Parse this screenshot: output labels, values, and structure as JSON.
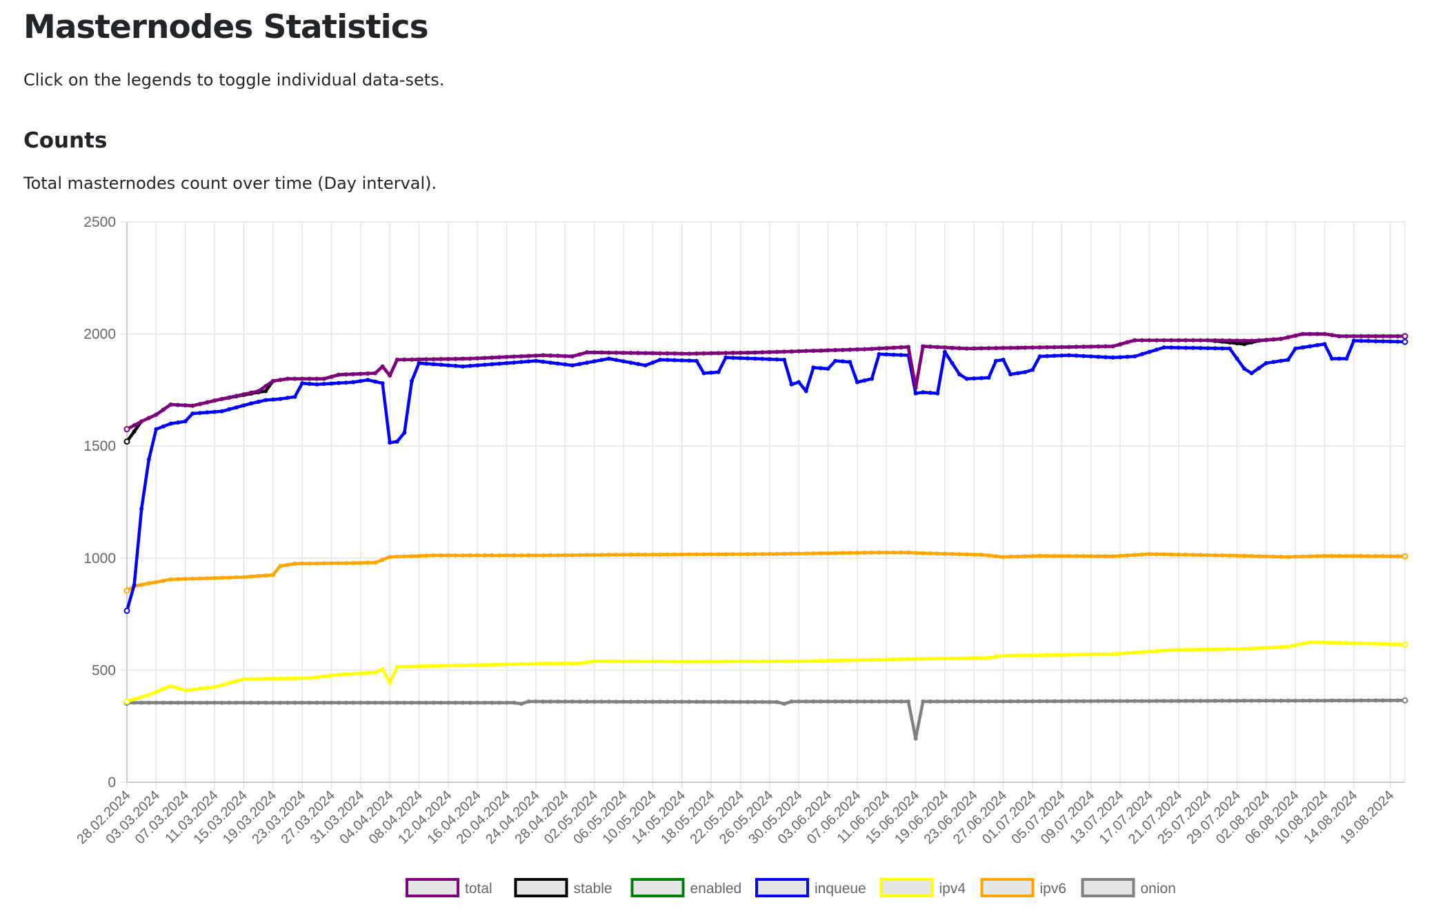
{
  "page": {
    "title": "Masternodes Statistics",
    "intro": "Click on the legends to toggle individual data-sets.",
    "section_title": "Counts",
    "section_description": "Total masternodes count over time (Day interval)."
  },
  "chart_data": {
    "type": "line",
    "title": "",
    "xlabel": "",
    "ylabel": "",
    "ylim": [
      0,
      2500
    ],
    "yticks": [
      0,
      500,
      1000,
      1500,
      2000,
      2500
    ],
    "grid": true,
    "legend_position": "bottom",
    "start_date": "2024-02-28",
    "end_date": "2024-08-21",
    "x_tick_labels": [
      "28.02.2024",
      "03.03.2024",
      "07.03.2024",
      "11.03.2024",
      "15.03.2024",
      "19.03.2024",
      "23.03.2024",
      "27.03.2024",
      "31.03.2024",
      "04.04.2024",
      "08.04.2024",
      "12.04.2024",
      "16.04.2024",
      "20.04.2024",
      "24.04.2024",
      "28.04.2024",
      "02.05.2024",
      "06.05.2024",
      "10.05.2024",
      "14.05.2024",
      "18.05.2024",
      "22.05.2024",
      "26.05.2024",
      "30.05.2024",
      "03.06.2024",
      "07.06.2024",
      "11.06.2024",
      "15.06.2024",
      "19.06.2024",
      "23.06.2024",
      "27.06.2024",
      "01.07.2024",
      "05.07.2024",
      "09.07.2024",
      "13.07.2024",
      "17.07.2024",
      "21.07.2024",
      "25.07.2024",
      "29.07.2024",
      "02.08.2024",
      "06.08.2024",
      "10.08.2024",
      "14.08.2024",
      "19.08.2024"
    ],
    "series": [
      {
        "name": "total",
        "color": "#800080",
        "keypoints": [
          [
            "2024-02-28",
            1575
          ],
          [
            "2024-03-01",
            1610
          ],
          [
            "2024-03-03",
            1640
          ],
          [
            "2024-03-05",
            1685
          ],
          [
            "2024-03-08",
            1680
          ],
          [
            "2024-03-12",
            1710
          ],
          [
            "2024-03-17",
            1745
          ],
          [
            "2024-03-19",
            1790
          ],
          [
            "2024-03-21",
            1800
          ],
          [
            "2024-03-26",
            1800
          ],
          [
            "2024-03-28",
            1818
          ],
          [
            "2024-04-02",
            1825
          ],
          [
            "2024-04-03",
            1855
          ],
          [
            "2024-04-04",
            1815
          ],
          [
            "2024-04-05",
            1885
          ],
          [
            "2024-04-15",
            1890
          ],
          [
            "2024-04-25",
            1905
          ],
          [
            "2024-04-29",
            1900
          ],
          [
            "2024-05-01",
            1918
          ],
          [
            "2024-05-15",
            1912
          ],
          [
            "2024-05-25",
            1918
          ],
          [
            "2024-06-08",
            1932
          ],
          [
            "2024-06-14",
            1942
          ],
          [
            "2024-06-15",
            1760
          ],
          [
            "2024-06-16",
            1945
          ],
          [
            "2024-06-22",
            1935
          ],
          [
            "2024-07-02",
            1940
          ],
          [
            "2024-07-12",
            1945
          ],
          [
            "2024-07-15",
            1972
          ],
          [
            "2024-07-25",
            1972
          ],
          [
            "2024-07-31",
            1970
          ],
          [
            "2024-08-04",
            1978
          ],
          [
            "2024-08-07",
            2000
          ],
          [
            "2024-08-10",
            2000
          ],
          [
            "2024-08-12",
            1990
          ],
          [
            "2024-08-21",
            1990
          ]
        ]
      },
      {
        "name": "stable",
        "color": "#000000",
        "keypoints": [
          [
            "2024-02-28",
            1520
          ],
          [
            "2024-03-01",
            1610
          ],
          [
            "2024-03-03",
            1640
          ],
          [
            "2024-03-05",
            1685
          ],
          [
            "2024-03-08",
            1680
          ],
          [
            "2024-03-12",
            1710
          ],
          [
            "2024-03-17",
            1740
          ],
          [
            "2024-03-18",
            1745
          ],
          [
            "2024-03-19",
            1790
          ],
          [
            "2024-03-21",
            1800
          ],
          [
            "2024-03-26",
            1800
          ],
          [
            "2024-03-28",
            1818
          ],
          [
            "2024-04-02",
            1825
          ],
          [
            "2024-04-03",
            1855
          ],
          [
            "2024-04-04",
            1815
          ],
          [
            "2024-04-05",
            1885
          ],
          [
            "2024-04-15",
            1890
          ],
          [
            "2024-04-25",
            1905
          ],
          [
            "2024-04-29",
            1900
          ],
          [
            "2024-05-01",
            1918
          ],
          [
            "2024-05-15",
            1912
          ],
          [
            "2024-05-25",
            1918
          ],
          [
            "2024-06-08",
            1932
          ],
          [
            "2024-06-14",
            1942
          ],
          [
            "2024-06-15",
            1760
          ],
          [
            "2024-06-16",
            1945
          ],
          [
            "2024-06-22",
            1935
          ],
          [
            "2024-07-02",
            1940
          ],
          [
            "2024-07-12",
            1945
          ],
          [
            "2024-07-15",
            1972
          ],
          [
            "2024-07-25",
            1972
          ],
          [
            "2024-07-30",
            1955
          ],
          [
            "2024-08-01",
            1970
          ],
          [
            "2024-08-04",
            1978
          ],
          [
            "2024-08-07",
            2000
          ],
          [
            "2024-08-10",
            2000
          ],
          [
            "2024-08-12",
            1990
          ],
          [
            "2024-08-21",
            1990
          ]
        ]
      },
      {
        "name": "enabled",
        "color": "#008000",
        "keypoints": []
      },
      {
        "name": "inqueue",
        "color": "#0000ff",
        "keypoints": [
          [
            "2024-02-28",
            765
          ],
          [
            "2024-02-29",
            880
          ],
          [
            "2024-03-01",
            1220
          ],
          [
            "2024-03-02",
            1440
          ],
          [
            "2024-03-03",
            1575
          ],
          [
            "2024-03-05",
            1600
          ],
          [
            "2024-03-07",
            1610
          ],
          [
            "2024-03-08",
            1645
          ],
          [
            "2024-03-12",
            1655
          ],
          [
            "2024-03-16",
            1690
          ],
          [
            "2024-03-18",
            1705
          ],
          [
            "2024-03-20",
            1710
          ],
          [
            "2024-03-22",
            1720
          ],
          [
            "2024-03-23",
            1780
          ],
          [
            "2024-03-25",
            1775
          ],
          [
            "2024-03-30",
            1785
          ],
          [
            "2024-04-01",
            1795
          ],
          [
            "2024-04-03",
            1780
          ],
          [
            "2024-04-04",
            1515
          ],
          [
            "2024-04-05",
            1520
          ],
          [
            "2024-04-06",
            1560
          ],
          [
            "2024-04-07",
            1790
          ],
          [
            "2024-04-08",
            1870
          ],
          [
            "2024-04-14",
            1855
          ],
          [
            "2024-04-24",
            1880
          ],
          [
            "2024-04-29",
            1860
          ],
          [
            "2024-05-04",
            1890
          ],
          [
            "2024-05-09",
            1860
          ],
          [
            "2024-05-11",
            1885
          ],
          [
            "2024-05-16",
            1880
          ],
          [
            "2024-05-17",
            1825
          ],
          [
            "2024-05-19",
            1830
          ],
          [
            "2024-05-20",
            1895
          ],
          [
            "2024-05-28",
            1885
          ],
          [
            "2024-05-29",
            1775
          ],
          [
            "2024-05-30",
            1785
          ],
          [
            "2024-05-31",
            1745
          ],
          [
            "2024-06-01",
            1850
          ],
          [
            "2024-06-03",
            1845
          ],
          [
            "2024-06-04",
            1880
          ],
          [
            "2024-06-06",
            1875
          ],
          [
            "2024-06-07",
            1785
          ],
          [
            "2024-06-09",
            1800
          ],
          [
            "2024-06-10",
            1910
          ],
          [
            "2024-06-14",
            1905
          ],
          [
            "2024-06-15",
            1735
          ],
          [
            "2024-06-16",
            1740
          ],
          [
            "2024-06-18",
            1735
          ],
          [
            "2024-06-19",
            1920
          ],
          [
            "2024-06-21",
            1820
          ],
          [
            "2024-06-22",
            1800
          ],
          [
            "2024-06-25",
            1805
          ],
          [
            "2024-06-26",
            1880
          ],
          [
            "2024-06-27",
            1885
          ],
          [
            "2024-06-28",
            1820
          ],
          [
            "2024-06-30",
            1830
          ],
          [
            "2024-07-01",
            1840
          ],
          [
            "2024-07-02",
            1900
          ],
          [
            "2024-07-06",
            1905
          ],
          [
            "2024-07-12",
            1895
          ],
          [
            "2024-07-15",
            1900
          ],
          [
            "2024-07-17",
            1920
          ],
          [
            "2024-07-19",
            1940
          ],
          [
            "2024-07-28",
            1935
          ],
          [
            "2024-07-30",
            1845
          ],
          [
            "2024-07-31",
            1825
          ],
          [
            "2024-08-02",
            1870
          ],
          [
            "2024-08-05",
            1885
          ],
          [
            "2024-08-06",
            1935
          ],
          [
            "2024-08-10",
            1955
          ],
          [
            "2024-08-11",
            1890
          ],
          [
            "2024-08-13",
            1890
          ],
          [
            "2024-08-14",
            1970
          ],
          [
            "2024-08-21",
            1965
          ]
        ]
      },
      {
        "name": "ipv4",
        "color": "#ffff00",
        "keypoints": [
          [
            "2024-02-28",
            360
          ],
          [
            "2024-03-02",
            390
          ],
          [
            "2024-03-05",
            430
          ],
          [
            "2024-03-07",
            410
          ],
          [
            "2024-03-11",
            425
          ],
          [
            "2024-03-15",
            460
          ],
          [
            "2024-03-19",
            462
          ],
          [
            "2024-03-24",
            465
          ],
          [
            "2024-03-28",
            480
          ],
          [
            "2024-04-02",
            490
          ],
          [
            "2024-04-03",
            505
          ],
          [
            "2024-04-04",
            445
          ],
          [
            "2024-04-05",
            515
          ],
          [
            "2024-04-15",
            522
          ],
          [
            "2024-04-25",
            530
          ],
          [
            "2024-04-30",
            530
          ],
          [
            "2024-05-02",
            540
          ],
          [
            "2024-05-15",
            538
          ],
          [
            "2024-05-30",
            540
          ],
          [
            "2024-06-15",
            550
          ],
          [
            "2024-06-25",
            555
          ],
          [
            "2024-06-27",
            565
          ],
          [
            "2024-07-05",
            568
          ],
          [
            "2024-07-12",
            572
          ],
          [
            "2024-07-20",
            590
          ],
          [
            "2024-07-30",
            595
          ],
          [
            "2024-08-05",
            605
          ],
          [
            "2024-08-08",
            625
          ],
          [
            "2024-08-21",
            615
          ]
        ]
      },
      {
        "name": "ipv6",
        "color": "#ffa500",
        "keypoints": [
          [
            "2024-02-28",
            855
          ],
          [
            "2024-02-29",
            875
          ],
          [
            "2024-03-05",
            905
          ],
          [
            "2024-03-08",
            908
          ],
          [
            "2024-03-15",
            915
          ],
          [
            "2024-03-19",
            925
          ],
          [
            "2024-03-20",
            965
          ],
          [
            "2024-03-22",
            975
          ],
          [
            "2024-03-30",
            978
          ],
          [
            "2024-04-02",
            980
          ],
          [
            "2024-04-04",
            1005
          ],
          [
            "2024-04-10",
            1012
          ],
          [
            "2024-04-25",
            1012
          ],
          [
            "2024-05-05",
            1015
          ],
          [
            "2024-05-25",
            1018
          ],
          [
            "2024-06-10",
            1025
          ],
          [
            "2024-06-14",
            1025
          ],
          [
            "2024-06-16",
            1022
          ],
          [
            "2024-06-24",
            1015
          ],
          [
            "2024-06-27",
            1005
          ],
          [
            "2024-07-02",
            1010
          ],
          [
            "2024-07-12",
            1008
          ],
          [
            "2024-07-17",
            1018
          ],
          [
            "2024-07-30",
            1010
          ],
          [
            "2024-08-05",
            1005
          ],
          [
            "2024-08-10",
            1010
          ],
          [
            "2024-08-21",
            1008
          ]
        ]
      },
      {
        "name": "onion",
        "color": "#808080",
        "keypoints": [
          [
            "2024-02-28",
            355
          ],
          [
            "2024-04-21",
            355
          ],
          [
            "2024-04-22",
            350
          ],
          [
            "2024-04-23",
            360
          ],
          [
            "2024-05-27",
            358
          ],
          [
            "2024-05-28",
            350
          ],
          [
            "2024-05-29",
            360
          ],
          [
            "2024-06-14",
            360
          ],
          [
            "2024-06-15",
            195
          ],
          [
            "2024-06-16",
            360
          ],
          [
            "2024-08-21",
            365
          ]
        ]
      }
    ]
  }
}
